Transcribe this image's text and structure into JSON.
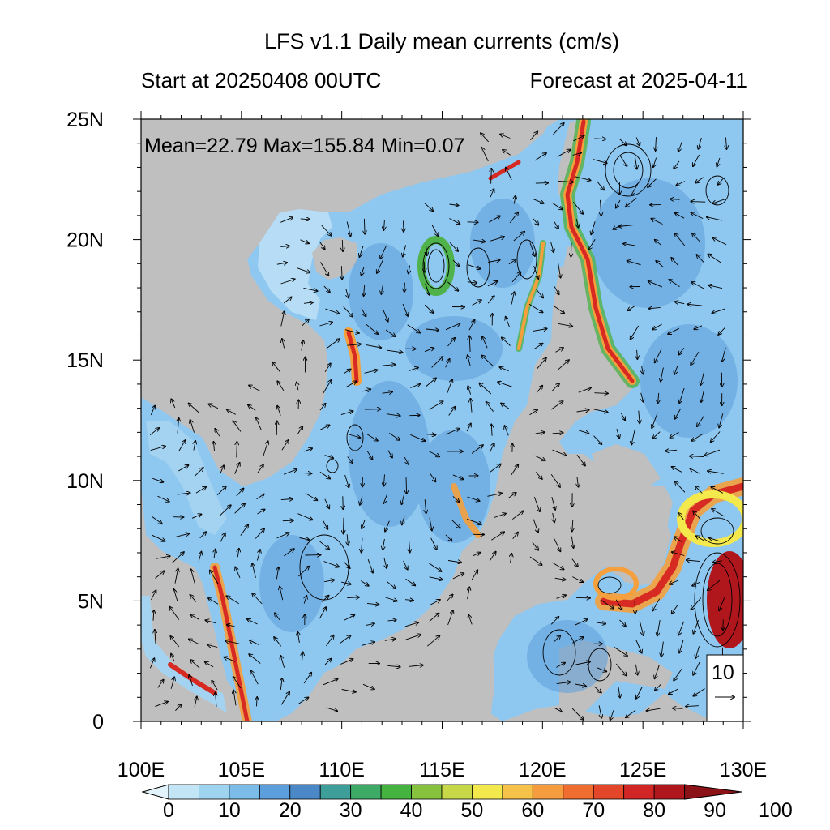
{
  "title": "LFS v1.1 Daily mean currents (cm/s)",
  "start_label": "Start at 20250408 00UTC",
  "forecast_label": "Forecast at 2025-04-11",
  "stats": "Mean=22.79  Max=155.84  Min=0.07",
  "lat_ticks": [
    {
      "label": "25N",
      "value": 25
    },
    {
      "label": "20N",
      "value": 20
    },
    {
      "label": "15N",
      "value": 15
    },
    {
      "label": "10N",
      "value": 10
    },
    {
      "label": "5N",
      "value": 5
    },
    {
      "label": "0",
      "value": 0
    }
  ],
  "lon_ticks": [
    {
      "label": "100E",
      "value": 100
    },
    {
      "label": "105E",
      "value": 105
    },
    {
      "label": "110E",
      "value": 110
    },
    {
      "label": "115E",
      "value": 115
    },
    {
      "label": "120E",
      "value": 120
    },
    {
      "label": "125E",
      "value": 125
    },
    {
      "label": "130E",
      "value": 130
    }
  ],
  "reference_vector": {
    "label": "10"
  },
  "colorbar": {
    "labels": [
      "0",
      "10",
      "20",
      "30",
      "40",
      "50",
      "60",
      "70",
      "80",
      "90",
      "100"
    ],
    "colors": [
      "#e2f3fb",
      "#c3e6f6",
      "#9fd4f0",
      "#7bbce9",
      "#5d9fdc",
      "#4a88c8",
      "#3e9f9a",
      "#3daa66",
      "#45b33f",
      "#86c23e",
      "#c6d848",
      "#f3e84c",
      "#f7c24a",
      "#f59c3e",
      "#ef6e2f",
      "#e4462a",
      "#d12625",
      "#b0171c",
      "#8b1317"
    ]
  },
  "map": {
    "land_color": "#bfbfbf",
    "ocean_low": "#d6ecf8",
    "ocean_mid": "#74b3e6",
    "ocean_dark": "#3f7fc2",
    "jet_color": "#d62a22",
    "jet_mid": "#f5a03c",
    "jet_green": "#4fb24a"
  }
}
